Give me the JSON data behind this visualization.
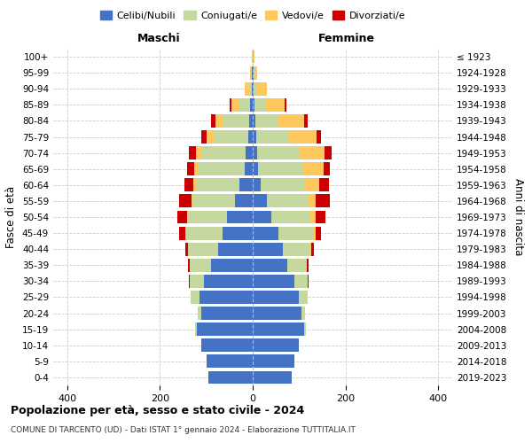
{
  "age_groups": [
    "0-4",
    "5-9",
    "10-14",
    "15-19",
    "20-24",
    "25-29",
    "30-34",
    "35-39",
    "40-44",
    "45-49",
    "50-54",
    "55-59",
    "60-64",
    "65-69",
    "70-74",
    "75-79",
    "80-84",
    "85-89",
    "90-94",
    "95-99",
    "100+"
  ],
  "birth_years": [
    "2019-2023",
    "2014-2018",
    "2009-2013",
    "2004-2008",
    "1999-2003",
    "1994-1998",
    "1989-1993",
    "1984-1988",
    "1979-1983",
    "1974-1978",
    "1969-1973",
    "1964-1968",
    "1959-1963",
    "1954-1958",
    "1949-1953",
    "1944-1948",
    "1939-1943",
    "1934-1938",
    "1929-1933",
    "1924-1928",
    "≤ 1923"
  ],
  "males": {
    "celibi": [
      95,
      100,
      110,
      120,
      110,
      115,
      105,
      90,
      75,
      65,
      55,
      38,
      28,
      18,
      15,
      10,
      8,
      5,
      2,
      1,
      0
    ],
    "coniugati": [
      0,
      0,
      0,
      5,
      8,
      18,
      30,
      45,
      65,
      80,
      85,
      90,
      95,
      100,
      95,
      75,
      55,
      25,
      5,
      2,
      1
    ],
    "vedovi": [
      0,
      0,
      0,
      0,
      0,
      0,
      0,
      0,
      0,
      1,
      2,
      3,
      5,
      8,
      12,
      15,
      18,
      15,
      10,
      3,
      1
    ],
    "divorziati": [
      0,
      0,
      0,
      0,
      0,
      0,
      3,
      5,
      5,
      12,
      20,
      28,
      20,
      15,
      15,
      10,
      8,
      5,
      1,
      0,
      0
    ]
  },
  "females": {
    "nubili": [
      85,
      90,
      100,
      110,
      105,
      100,
      90,
      75,
      65,
      55,
      40,
      30,
      18,
      12,
      10,
      8,
      5,
      3,
      2,
      1,
      0
    ],
    "coniugate": [
      0,
      0,
      0,
      5,
      8,
      18,
      28,
      40,
      60,
      75,
      85,
      88,
      95,
      95,
      90,
      70,
      50,
      25,
      8,
      3,
      1
    ],
    "vedove": [
      0,
      0,
      0,
      0,
      0,
      0,
      0,
      1,
      2,
      5,
      10,
      18,
      30,
      45,
      55,
      60,
      55,
      40,
      20,
      5,
      2
    ],
    "divorziate": [
      0,
      0,
      0,
      0,
      0,
      0,
      3,
      5,
      5,
      12,
      22,
      30,
      22,
      15,
      15,
      10,
      8,
      5,
      1,
      0,
      0
    ]
  },
  "colors": {
    "celibi_nubili": "#4472c4",
    "coniugati": "#c5d8a0",
    "vedovi": "#ffc85c",
    "divorziati": "#cc0000"
  },
  "xlim": 430,
  "xticks": [
    -400,
    -200,
    0,
    200,
    400
  ],
  "title": "Popolazione per età, sesso e stato civile - 2024",
  "subtitle": "COMUNE DI TARCENTO (UD) - Dati ISTAT 1° gennaio 2024 - Elaborazione TUTTITALIA.IT",
  "ylabel": "Fasce di età",
  "ylabel_right": "Anni di nascita",
  "legend_labels": [
    "Celibi/Nubili",
    "Coniugati/e",
    "Vedovi/e",
    "Divorziati/e"
  ],
  "maschi_label": "Maschi",
  "femmine_label": "Femmine"
}
